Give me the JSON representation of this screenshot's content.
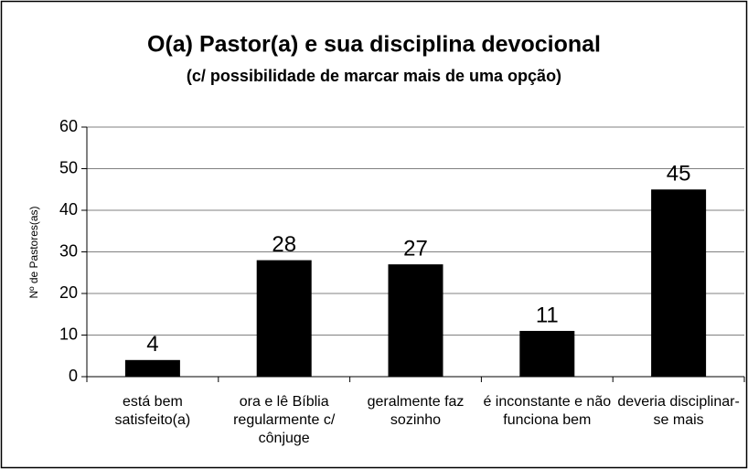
{
  "chart_data": {
    "type": "bar",
    "title": "O(a) Pastor(a) e sua disciplina devocional",
    "subtitle": "(c/ possibilidade de marcar mais de uma opção)",
    "y_label": "Nº de Pastores(as)",
    "categories": [
      "está bem satisfeito(a)",
      "ora e lê Bíblia regularmente c/ cônjuge",
      "geralmente faz sozinho",
      "é inconstante e não funciona bem",
      "deveria disciplinar-se mais"
    ],
    "values": [
      4,
      28,
      27,
      11,
      45
    ],
    "color": "#000000",
    "ylim": [
      0,
      60
    ],
    "yticks": [
      0,
      10,
      20,
      30,
      40,
      50,
      60
    ],
    "grid": true
  }
}
